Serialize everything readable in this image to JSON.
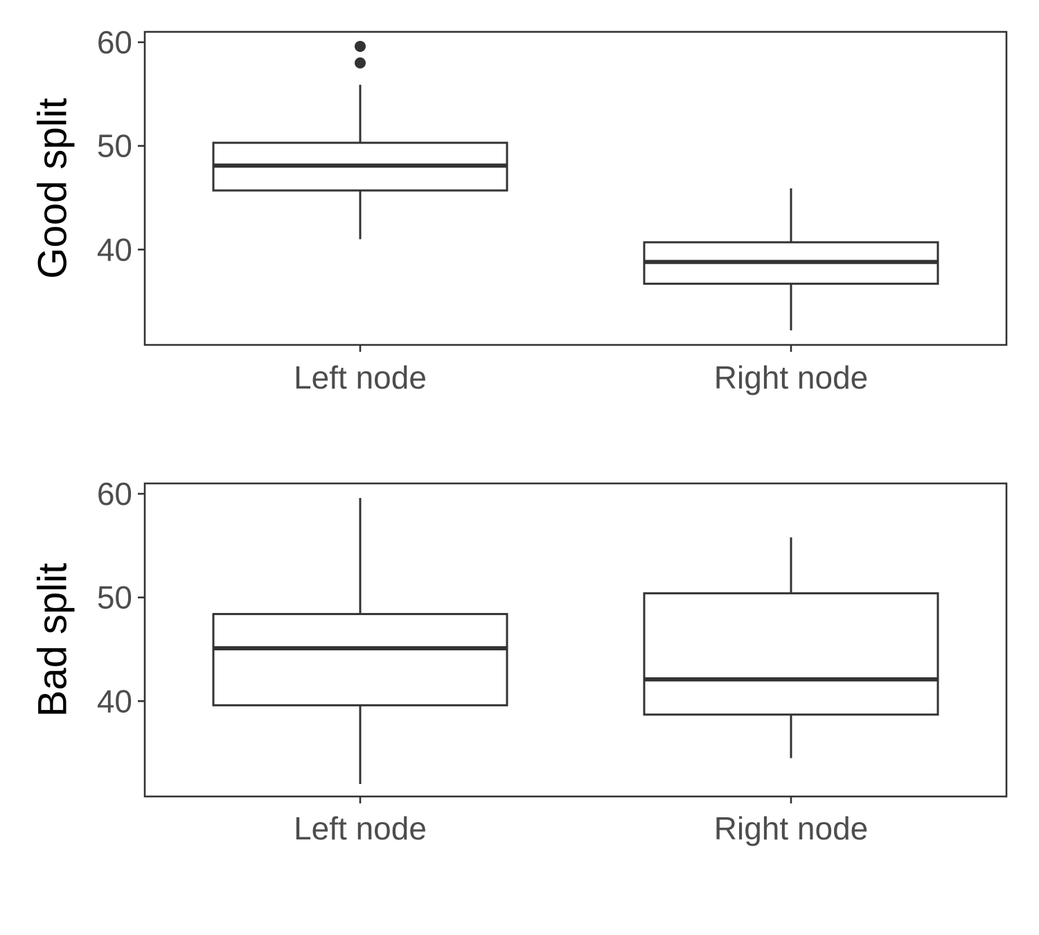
{
  "chart_data": [
    {
      "type": "boxplot",
      "ylabel": "Good split",
      "categories": [
        "Left node",
        "Right node"
      ],
      "y_ticks": [
        40,
        50,
        60
      ],
      "ylim": [
        30.8,
        61
      ],
      "grid": false,
      "boxes": [
        {
          "category": "Left node",
          "whisker_low": 41.0,
          "q1": 45.7,
          "median": 48.1,
          "q3": 50.3,
          "whisker_high": 55.9,
          "outliers": [
            58.0,
            59.6
          ]
        },
        {
          "category": "Right node",
          "whisker_low": 32.2,
          "q1": 36.7,
          "median": 38.8,
          "q3": 40.7,
          "whisker_high": 45.9,
          "outliers": []
        }
      ]
    },
    {
      "type": "boxplot",
      "ylabel": "Bad split",
      "categories": [
        "Left node",
        "Right node"
      ],
      "y_ticks": [
        40,
        50,
        60
      ],
      "ylim": [
        30.8,
        61
      ],
      "grid": false,
      "boxes": [
        {
          "category": "Left node",
          "whisker_low": 32.0,
          "q1": 39.6,
          "median": 45.1,
          "q3": 48.4,
          "whisker_high": 59.6,
          "outliers": []
        },
        {
          "category": "Right node",
          "whisker_low": 34.5,
          "q1": 38.7,
          "median": 42.1,
          "q3": 50.4,
          "whisker_high": 55.8,
          "outliers": []
        }
      ]
    }
  ]
}
